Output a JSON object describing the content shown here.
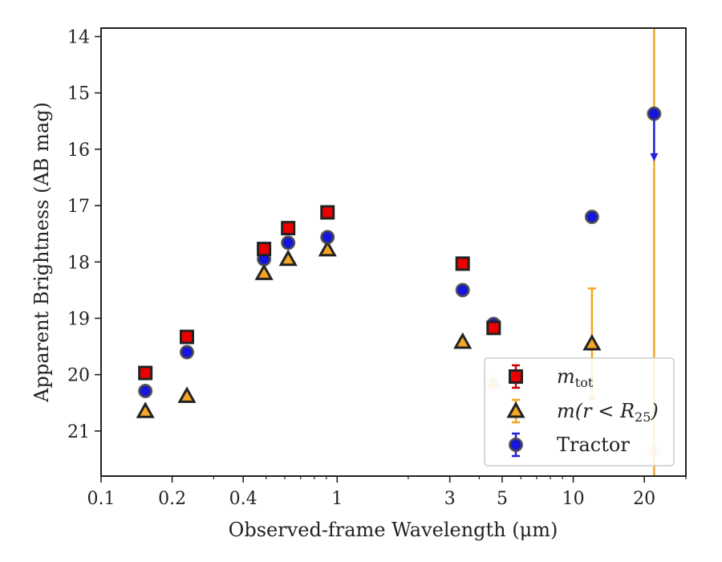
{
  "chart_data": {
    "type": "scatter",
    "xlabel": "Observed-frame Wavelength (μm)",
    "ylabel": "Apparent Brightness (AB mag)",
    "x_scale": "log",
    "xlim": [
      0.1,
      30
    ],
    "ylim": [
      21.8,
      13.85
    ],
    "y_inverted": true,
    "x_ticks": [
      0.1,
      0.2,
      0.4,
      1,
      3,
      5,
      10,
      20
    ],
    "x_tick_labels": [
      "0.1",
      "0.2",
      "0.4",
      "1",
      "3",
      "5",
      "10",
      "20"
    ],
    "y_ticks": [
      14,
      15,
      16,
      17,
      18,
      19,
      20,
      21
    ],
    "y_tick_labels": [
      "14",
      "15",
      "16",
      "17",
      "18",
      "19",
      "20",
      "21"
    ],
    "grid": false,
    "legend_position": "lower-right",
    "series": [
      {
        "name": "m_tot",
        "legend_main": "m",
        "legend_sub": "tot",
        "marker": "square",
        "fill": "#ee0000",
        "edge": "#222222",
        "errcolor": "#cc0000",
        "x": [
          0.154,
          0.231,
          0.49,
          0.62,
          0.91,
          3.4,
          4.6
        ],
        "y": [
          19.97,
          19.33,
          17.77,
          17.4,
          17.12,
          18.03,
          19.17
        ],
        "yerr": [
          0.03,
          0.03,
          0.02,
          0.02,
          0.02,
          0.03,
          0.05
        ]
      },
      {
        "name": "m(r < R25)",
        "legend_main": "m(r < R",
        "legend_sub": "25",
        "legend_tail": ")",
        "marker": "triangle",
        "fill": "#f5a623",
        "edge": "#222222",
        "errcolor": "#f5a623",
        "x": [
          0.154,
          0.231,
          0.49,
          0.62,
          0.91,
          3.4,
          4.6,
          12.0,
          22.0
        ],
        "y": [
          20.65,
          20.38,
          18.2,
          17.95,
          17.78,
          19.42,
          20.15,
          19.45,
          21.32
        ],
        "yerr": [
          0.03,
          0.03,
          0.02,
          0.02,
          0.02,
          0.03,
          0.05,
          0.98,
          99
        ],
        "faded": [
          false,
          false,
          false,
          false,
          false,
          false,
          true,
          false,
          true
        ]
      },
      {
        "name": "Tractor",
        "marker": "circle",
        "fill": "#1515e0",
        "edge": "#444444",
        "errcolor": "#2222dd",
        "x": [
          0.154,
          0.231,
          0.49,
          0.62,
          0.91,
          3.4,
          4.6,
          12.0,
          22.0
        ],
        "y": [
          20.29,
          19.6,
          17.95,
          17.66,
          17.56,
          18.5,
          19.1,
          17.2,
          15.37
        ],
        "yerr": [
          0.04,
          0.05,
          0.03,
          0.03,
          0.03,
          0.04,
          0.06,
          0.06,
          0.04
        ],
        "upper_limit": [
          false,
          false,
          false,
          false,
          false,
          false,
          false,
          false,
          true
        ]
      }
    ]
  }
}
